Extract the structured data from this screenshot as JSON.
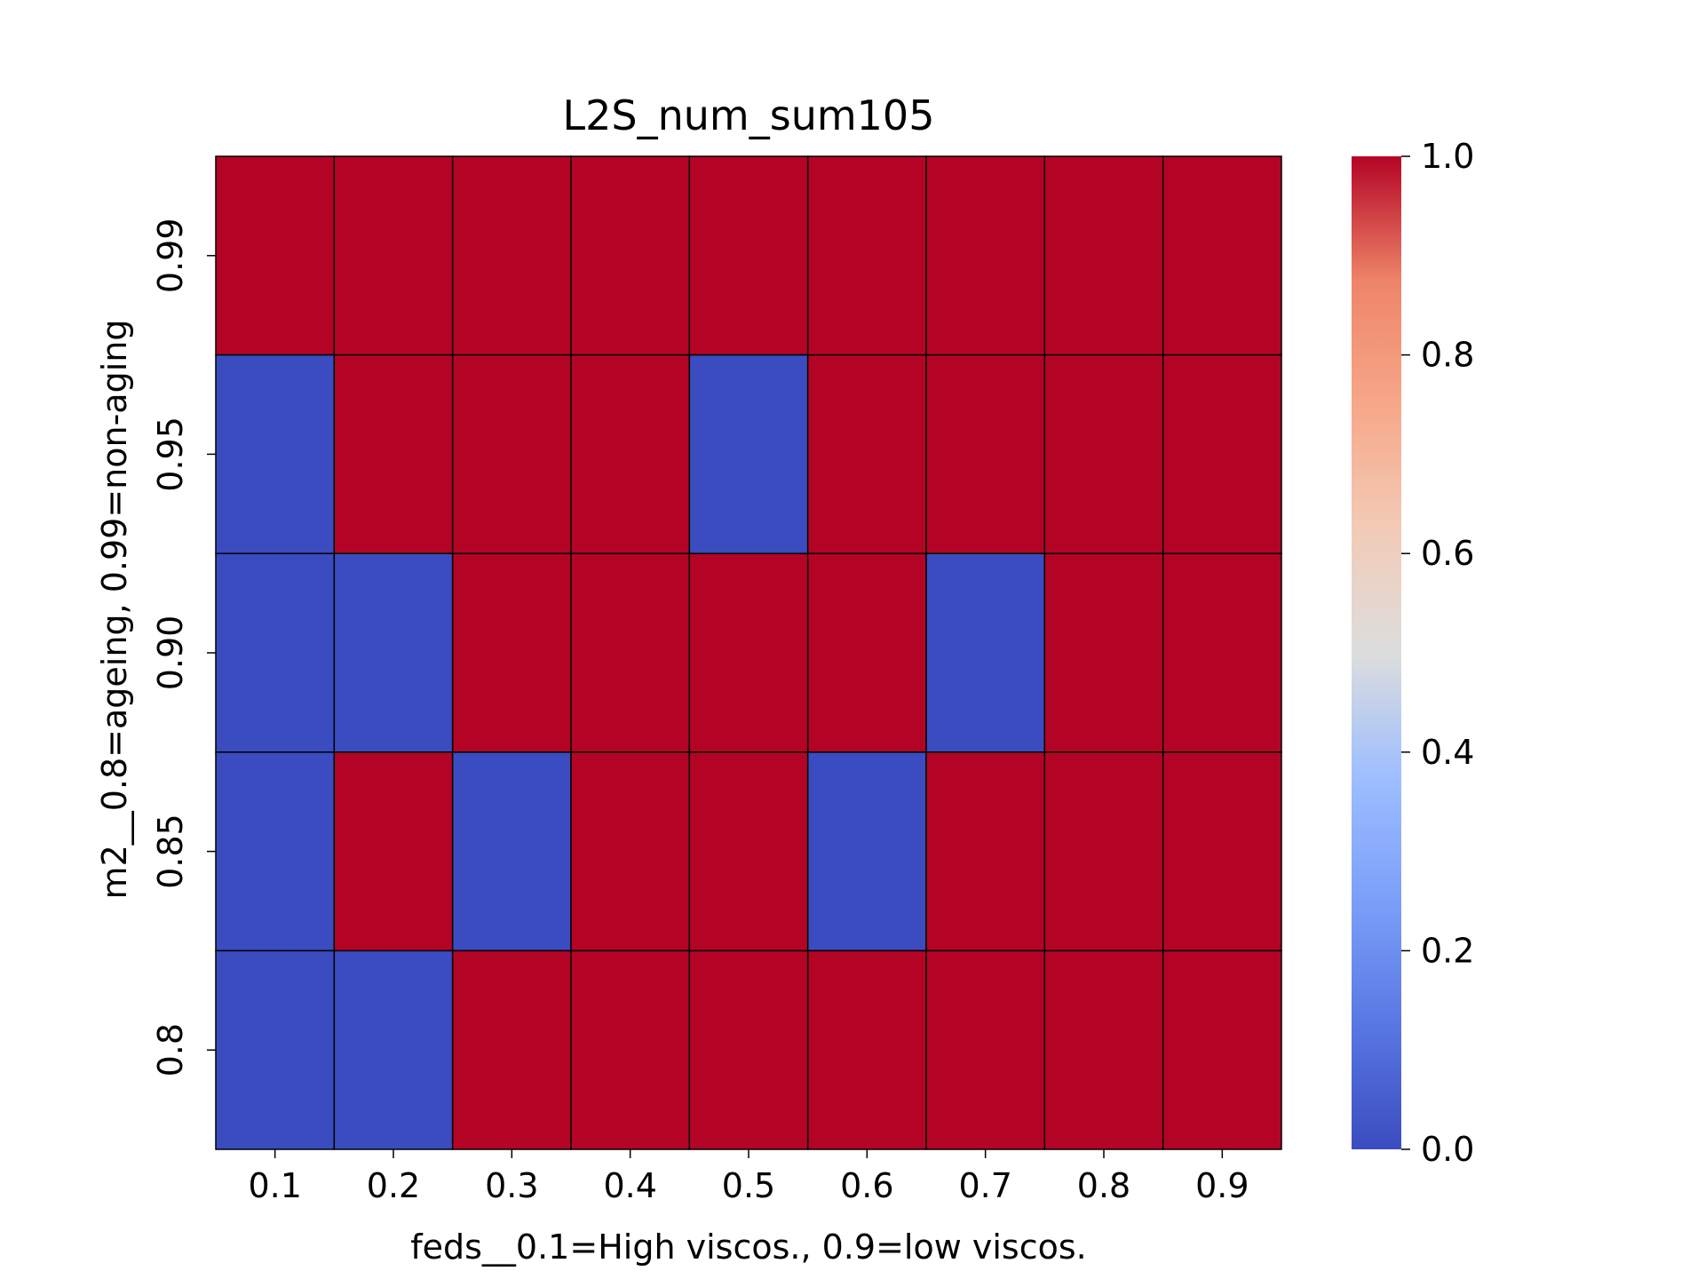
{
  "chart_data": {
    "type": "heatmap",
    "title": "L2S_num_sum105",
    "xlabel": "feds__0.1=High viscos., 0.9=low viscos.",
    "ylabel": "m2__0.8=ageing, 0.99=non-aging",
    "x_categories": [
      "0.1",
      "0.2",
      "0.3",
      "0.4",
      "0.5",
      "0.6",
      "0.7",
      "0.8",
      "0.9"
    ],
    "y_categories": [
      "0.99",
      "0.95",
      "0.90",
      "0.85",
      "0.8"
    ],
    "values": [
      [
        1,
        1,
        1,
        1,
        1,
        1,
        1,
        1,
        1
      ],
      [
        0,
        1,
        1,
        1,
        0,
        1,
        1,
        1,
        1
      ],
      [
        0,
        0,
        1,
        1,
        1,
        1,
        0,
        1,
        1
      ],
      [
        0,
        1,
        0,
        1,
        1,
        0,
        1,
        1,
        1
      ],
      [
        0,
        0,
        1,
        1,
        1,
        1,
        1,
        1,
        1
      ]
    ],
    "colormap": "coolwarm",
    "vmin": 0,
    "vmax": 1,
    "colorbar": {
      "ticks": [
        "0.0",
        "0.2",
        "0.4",
        "0.6",
        "0.8",
        "1.0"
      ],
      "location": "right"
    },
    "colors": {
      "low": "#3b4cc0",
      "high": "#b40426",
      "cell_border": "#000000"
    }
  }
}
